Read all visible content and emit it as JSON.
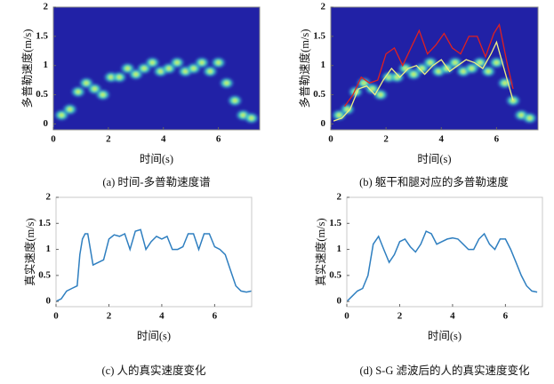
{
  "chart_data": [
    {
      "type": "spectrogram",
      "caption": "(a) 时间-多普勒速度谱",
      "xlabel": "时间(s)",
      "ylabel": "多普勒速度(m/s)",
      "xlim": [
        0,
        7.5
      ],
      "ylim": [
        -0.1,
        2
      ],
      "xticks": [
        0,
        2,
        4,
        6
      ],
      "yticks": [
        0,
        0.5,
        1,
        1.5,
        2
      ],
      "background": "#2121a6",
      "color": "#c8f060",
      "x": [
        0.3,
        0.6,
        0.9,
        1.2,
        1.5,
        1.8,
        2.1,
        2.4,
        2.7,
        3.0,
        3.3,
        3.6,
        3.9,
        4.2,
        4.5,
        4.8,
        5.1,
        5.4,
        5.7,
        6.0,
        6.3,
        6.6,
        6.9,
        7.2
      ],
      "values": [
        0.15,
        0.25,
        0.55,
        0.7,
        0.6,
        0.5,
        0.8,
        0.8,
        0.95,
        0.85,
        0.95,
        1.05,
        0.9,
        0.95,
        1.05,
        0.9,
        0.95,
        1.05,
        0.9,
        1.05,
        0.7,
        0.4,
        0.15,
        0.1
      ]
    },
    {
      "type": "spectrogram",
      "caption": "(b) 躯干和腿对应的多普勒速度",
      "xlabel": "时间(s)",
      "ylabel": "多普勒速度(m/s)",
      "xlim": [
        0,
        7.5
      ],
      "ylim": [
        -0.1,
        2
      ],
      "xticks": [
        0,
        2,
        4,
        6
      ],
      "yticks": [
        0,
        0.5,
        1,
        1.5,
        2
      ],
      "background": "#2121a6",
      "color": "#c8f060",
      "x": [
        0.3,
        0.6,
        0.9,
        1.2,
        1.5,
        1.8,
        2.1,
        2.4,
        2.7,
        3.0,
        3.3,
        3.6,
        3.9,
        4.2,
        4.5,
        4.8,
        5.1,
        5.4,
        5.7,
        6.0,
        6.3,
        6.6,
        6.9,
        7.2
      ],
      "values": [
        0.15,
        0.25,
        0.55,
        0.7,
        0.6,
        0.5,
        0.8,
        0.8,
        0.95,
        0.85,
        0.95,
        1.05,
        0.9,
        0.95,
        1.05,
        0.9,
        0.95,
        1.05,
        0.9,
        1.05,
        0.7,
        0.4,
        0.15,
        0.1
      ],
      "series": [
        {
          "color": "#e02020",
          "x": [
            0.5,
            0.8,
            1.1,
            1.4,
            1.7,
            2.0,
            2.3,
            2.6,
            2.9,
            3.2,
            3.5,
            3.8,
            4.1,
            4.4,
            4.7,
            5.0,
            5.3,
            5.6,
            5.9,
            6.1,
            6.4,
            6.6
          ],
          "values": [
            0.3,
            0.5,
            0.8,
            0.7,
            0.75,
            1.2,
            1.3,
            1.0,
            1.3,
            1.6,
            1.2,
            1.35,
            1.55,
            1.3,
            1.2,
            1.5,
            1.5,
            1.15,
            1.55,
            1.7,
            1.0,
            0.6
          ]
        },
        {
          "color": "#f0f080",
          "x": [
            0.1,
            0.4,
            0.7,
            1.0,
            1.3,
            1.6,
            1.9,
            2.2,
            2.5,
            2.8,
            3.1,
            3.4,
            3.7,
            4.0,
            4.3,
            4.6,
            4.9,
            5.2,
            5.5,
            5.8,
            6.0,
            6.3,
            6.6
          ],
          "values": [
            0.05,
            0.1,
            0.25,
            0.6,
            0.65,
            0.5,
            0.75,
            0.95,
            0.8,
            0.95,
            1.0,
            0.85,
            1.0,
            1.1,
            0.9,
            1.0,
            1.1,
            1.05,
            0.95,
            1.2,
            1.4,
            0.9,
            0.4
          ]
        }
      ]
    },
    {
      "type": "line",
      "caption": "(c) 人的真实速度变化",
      "xlabel": "时间(s)",
      "ylabel": "真实速度(m/s)",
      "xlim": [
        0,
        7.4
      ],
      "ylim": [
        -0.1,
        2
      ],
      "xticks": [
        0,
        2,
        4,
        6
      ],
      "yticks": [
        0,
        0.5,
        1,
        1.5,
        2
      ],
      "color": "#2f7fc0",
      "x": [
        0,
        0.2,
        0.4,
        0.6,
        0.8,
        0.9,
        1.0,
        1.1,
        1.2,
        1.4,
        1.6,
        1.8,
        2.0,
        2.2,
        2.4,
        2.6,
        2.8,
        3.0,
        3.2,
        3.4,
        3.6,
        3.8,
        4.0,
        4.2,
        4.4,
        4.6,
        4.8,
        5.0,
        5.2,
        5.4,
        5.6,
        5.8,
        6.0,
        6.2,
        6.4,
        6.6,
        6.8,
        7.0,
        7.2,
        7.4
      ],
      "values": [
        0.0,
        0.05,
        0.2,
        0.25,
        0.3,
        0.9,
        1.2,
        1.3,
        1.3,
        0.7,
        0.75,
        0.8,
        1.2,
        1.28,
        1.25,
        1.3,
        1.0,
        1.35,
        1.38,
        1.0,
        1.15,
        1.25,
        1.2,
        1.25,
        1.0,
        1.0,
        1.05,
        1.3,
        1.3,
        1.0,
        1.3,
        1.3,
        1.05,
        1.0,
        0.9,
        0.6,
        0.3,
        0.2,
        0.18,
        0.2
      ]
    },
    {
      "type": "line",
      "caption": "(d) S-G 滤波后的人的真实速度变化",
      "xlabel": "时间(s)",
      "ylabel": "真实速度(m/s)",
      "xlim": [
        0,
        7.4
      ],
      "ylim": [
        -0.1,
        2
      ],
      "xticks": [
        0,
        2,
        4,
        6
      ],
      "yticks": [
        0,
        0.5,
        1,
        1.5,
        2
      ],
      "color": "#2f7fc0",
      "x": [
        0,
        0.2,
        0.4,
        0.6,
        0.8,
        1.0,
        1.2,
        1.4,
        1.6,
        1.8,
        2.0,
        2.2,
        2.4,
        2.6,
        2.8,
        3.0,
        3.2,
        3.4,
        3.6,
        3.8,
        4.0,
        4.2,
        4.4,
        4.6,
        4.8,
        5.0,
        5.2,
        5.4,
        5.6,
        5.8,
        6.0,
        6.2,
        6.4,
        6.6,
        6.8,
        7.0,
        7.2
      ],
      "values": [
        0.0,
        0.1,
        0.2,
        0.25,
        0.5,
        1.1,
        1.25,
        1.0,
        0.75,
        0.9,
        1.15,
        1.2,
        1.05,
        0.95,
        1.1,
        1.35,
        1.3,
        1.1,
        1.15,
        1.2,
        1.22,
        1.2,
        1.1,
        1.0,
        1.0,
        1.2,
        1.3,
        1.1,
        1.0,
        1.2,
        1.2,
        1.0,
        0.75,
        0.5,
        0.3,
        0.2,
        0.18
      ]
    }
  ]
}
